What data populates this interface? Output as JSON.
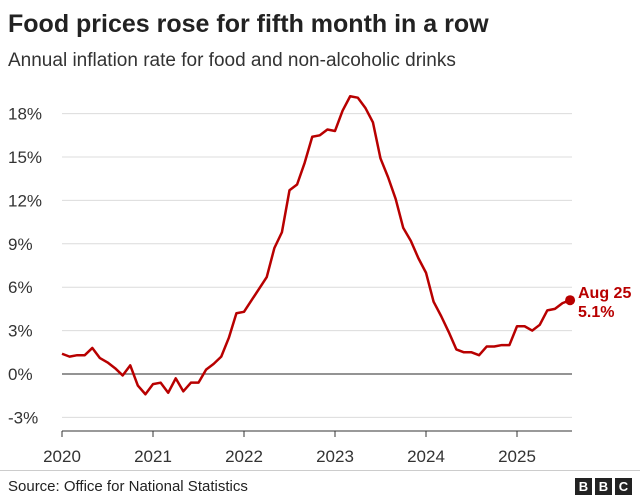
{
  "chart_data": {
    "type": "line",
    "title": "Food prices rose for fifth month in a row",
    "subtitle": "Annual inflation rate for food and non-alcoholic drinks",
    "xlabel": "",
    "ylabel": "",
    "x_ticks": [
      "2020",
      "2021",
      "2022",
      "2023",
      "2024",
      "2025"
    ],
    "y_ticks": [
      "18%",
      "15%",
      "12%",
      "9%",
      "6%",
      "3%",
      "0%",
      "-3%"
    ],
    "y_tick_values": [
      18,
      15,
      12,
      9,
      6,
      3,
      0,
      -3
    ],
    "ylim": [
      -4,
      19.5
    ],
    "x_start": "Jan 2020",
    "grid": true,
    "series": [
      {
        "color": "#b80000",
        "values": [
          1.4,
          1.2,
          1.3,
          1.3,
          1.8,
          1.1,
          0.8,
          0.4,
          -0.1,
          0.6,
          -0.8,
          -1.4,
          -0.7,
          -0.6,
          -1.3,
          -0.3,
          -1.2,
          -0.6,
          -0.6,
          0.3,
          0.7,
          1.2,
          2.5,
          4.2,
          4.3,
          5.1,
          5.9,
          6.7,
          8.7,
          9.8,
          12.7,
          13.1,
          14.6,
          16.4,
          16.5,
          16.9,
          16.8,
          18.2,
          19.2,
          19.1,
          18.4,
          17.4,
          14.9,
          13.6,
          12.1,
          10.1,
          9.2,
          8.0,
          7.0,
          5.0,
          4.0,
          2.9,
          1.7,
          1.5,
          1.5,
          1.3,
          1.9,
          1.9,
          2.0,
          2.0,
          3.3,
          3.3,
          3.0,
          3.4,
          4.4,
          4.5,
          4.9,
          5.1
        ]
      }
    ],
    "annotation": {
      "label": "Aug 25",
      "value": "5.1%"
    }
  },
  "footer": {
    "source": "Source: Office for National Statistics",
    "logo": [
      "B",
      "B",
      "C"
    ]
  }
}
